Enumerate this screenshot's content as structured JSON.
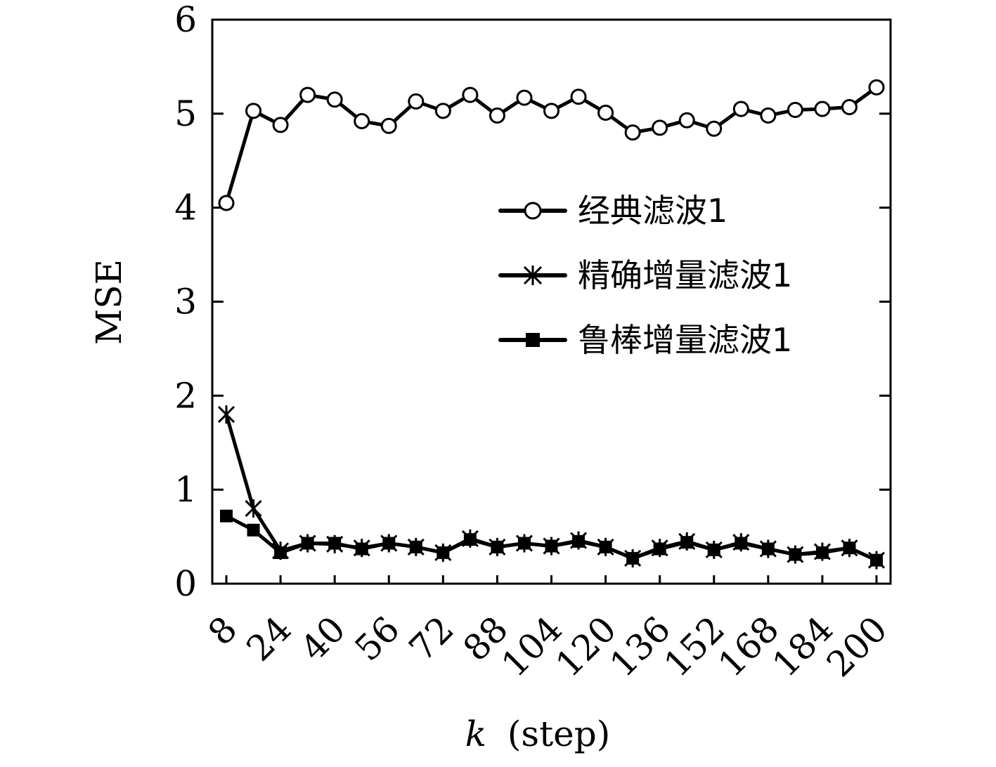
{
  "chart_data": {
    "type": "line",
    "xlabel_var": "k",
    "xlabel_unit": "(step)",
    "ylabel": "MSE",
    "xlim": [
      8,
      200
    ],
    "ylim": [
      0,
      6
    ],
    "xticks": [
      8,
      24,
      40,
      56,
      72,
      88,
      104,
      120,
      136,
      152,
      168,
      184,
      200
    ],
    "yticks": [
      0,
      1,
      2,
      3,
      4,
      5,
      6
    ],
    "legend_position": "center-right",
    "grid": false,
    "x": [
      8,
      16,
      24,
      32,
      40,
      48,
      56,
      64,
      72,
      80,
      88,
      96,
      104,
      112,
      120,
      128,
      136,
      144,
      152,
      160,
      168,
      176,
      184,
      192,
      200
    ],
    "series": [
      {
        "name": "经典滤波1",
        "marker": "circle",
        "values": [
          4.05,
          5.03,
          4.88,
          5.2,
          5.15,
          4.92,
          4.87,
          5.13,
          5.03,
          5.2,
          4.98,
          5.17,
          5.03,
          5.18,
          5.01,
          4.8,
          4.85,
          4.93,
          4.84,
          5.05,
          4.98,
          5.04,
          5.05,
          5.07,
          5.28
        ]
      },
      {
        "name": "精确增量滤波1",
        "marker": "star",
        "values": [
          1.8,
          0.8,
          0.35,
          0.43,
          0.42,
          0.38,
          0.43,
          0.39,
          0.33,
          0.48,
          0.39,
          0.43,
          0.4,
          0.46,
          0.39,
          0.27,
          0.38,
          0.45,
          0.36,
          0.44,
          0.37,
          0.31,
          0.34,
          0.38,
          0.25
        ]
      },
      {
        "name": "鲁棒增量滤波1",
        "marker": "square",
        "values": [
          0.72,
          0.57,
          0.33,
          0.43,
          0.43,
          0.37,
          0.43,
          0.39,
          0.33,
          0.47,
          0.39,
          0.43,
          0.4,
          0.45,
          0.39,
          0.27,
          0.37,
          0.44,
          0.36,
          0.43,
          0.37,
          0.31,
          0.33,
          0.38,
          0.25
        ]
      }
    ]
  }
}
